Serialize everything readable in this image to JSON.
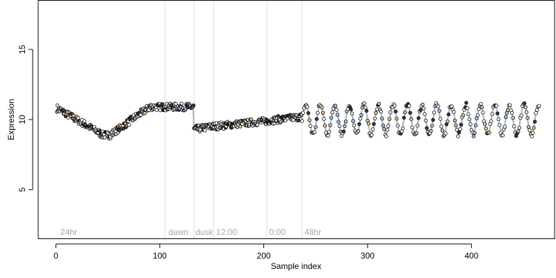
{
  "chart_data": {
    "type": "scatter",
    "title": "",
    "xlabel": "Sample index",
    "ylabel": "Expression",
    "xlim": [
      -17,
      480
    ],
    "ylim": [
      1.5,
      18.5
    ],
    "x_ticks": [
      0,
      100,
      200,
      300,
      400
    ],
    "y_ticks": [
      5,
      10,
      15
    ],
    "grid": false,
    "legend": "none",
    "colors": {
      "line": "#a9b7c7",
      "point_fill_light": "#ffffff",
      "point_fill_dark": "#3a3a3a",
      "point_fill_blue": "#aac4ea",
      "point_fill_orange": "#f2c38f",
      "divider": "#dddddd",
      "segment_label": "#a6a6a6"
    },
    "dividers": [
      105,
      133,
      152,
      203,
      237
    ],
    "segment_labels": [
      {
        "text": "24hr",
        "x": 3
      },
      {
        "text": "dawn",
        "x": 107
      },
      {
        "text": "dusk",
        "x": 133
      },
      {
        "text": "12:00",
        "x": 153
      },
      {
        "text": "0:00",
        "x": 204
      },
      {
        "text": "48hr",
        "x": 238
      }
    ],
    "series": [
      {
        "segments": [
          {
            "x_start": 1,
            "x_end": 45,
            "y_start": 10.8,
            "y_end": 8.9,
            "shape": "linear"
          },
          {
            "x_start": 45,
            "x_end": 52,
            "y_start": 8.9,
            "y_end": 8.9,
            "shape": "linear"
          },
          {
            "x_start": 52,
            "x_end": 90,
            "y_start": 8.9,
            "y_end": 10.9,
            "shape": "linear"
          },
          {
            "x_start": 90,
            "x_end": 132,
            "y_start": 10.9,
            "y_end": 10.9,
            "shape": "linear"
          },
          {
            "x_start": 133,
            "x_end": 150,
            "y_start": 9.3,
            "y_end": 9.5,
            "shape": "linear"
          },
          {
            "x_start": 150,
            "x_end": 203,
            "y_start": 9.5,
            "y_end": 9.9,
            "shape": "linear"
          },
          {
            "x_start": 203,
            "x_end": 236,
            "y_start": 9.9,
            "y_end": 10.2,
            "shape": "linear"
          },
          {
            "x_start": 237,
            "x_end": 465,
            "y_start": 10.0,
            "y_end": 10.0,
            "shape": "oscillation",
            "amplitude": 1.05,
            "period": 14
          }
        ]
      }
    ]
  }
}
